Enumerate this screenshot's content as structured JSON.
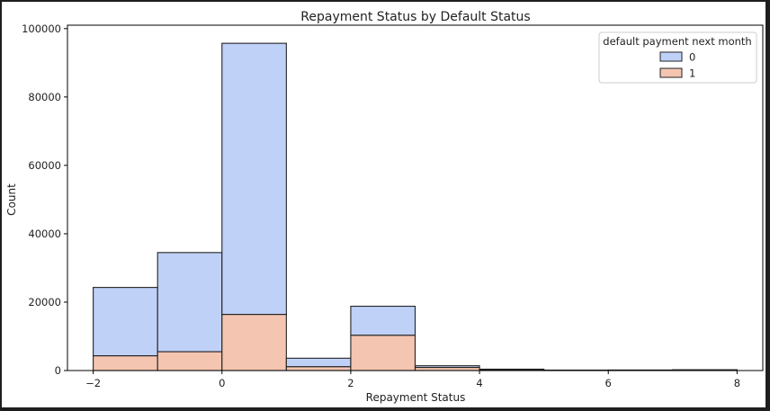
{
  "chart_data": {
    "type": "bar",
    "subtype": "stacked-histogram",
    "title": "Repayment Status by Default Status",
    "xlabel": "Repayment Status",
    "ylabel": "Count",
    "xlim": [
      -2.4,
      8.4
    ],
    "ylim": [
      0,
      101000
    ],
    "xticks": [
      -2,
      0,
      2,
      4,
      6,
      8
    ],
    "xtick_labels": [
      "−2",
      "0",
      "2",
      "4",
      "6",
      "8"
    ],
    "yticks": [
      0,
      20000,
      40000,
      60000,
      80000,
      100000
    ],
    "ytick_labels": [
      "0",
      "20000",
      "40000",
      "60000",
      "80000",
      "100000"
    ],
    "bins": [
      {
        "x0": -2,
        "x1": -1,
        "count_0": 20000,
        "count_1": 4300
      },
      {
        "x0": -1,
        "x1": 0,
        "count_0": 29000,
        "count_1": 5500
      },
      {
        "x0": 0,
        "x1": 1,
        "count_0": 79300,
        "count_1": 16400
      },
      {
        "x0": 1,
        "x1": 2,
        "count_0": 2500,
        "count_1": 1100
      },
      {
        "x0": 2,
        "x1": 3,
        "count_0": 8500,
        "count_1": 10300
      },
      {
        "x0": 3,
        "x1": 4,
        "count_0": 500,
        "count_1": 900
      },
      {
        "x0": 4,
        "x1": 5,
        "count_0": 150,
        "count_1": 250
      },
      {
        "x0": 5,
        "x1": 6,
        "count_0": 50,
        "count_1": 80
      },
      {
        "x0": 6,
        "x1": 7,
        "count_0": 60,
        "count_1": 100
      },
      {
        "x0": 7,
        "x1": 8,
        "count_0": 80,
        "count_1": 150
      }
    ],
    "series": [
      {
        "name": "0",
        "color": "#c0d1f8",
        "key": "count_0"
      },
      {
        "name": "1",
        "color": "#f4c5b1",
        "key": "count_1"
      }
    ],
    "legend": {
      "title": "default payment next month",
      "placement": "top-right"
    },
    "grid": false
  }
}
